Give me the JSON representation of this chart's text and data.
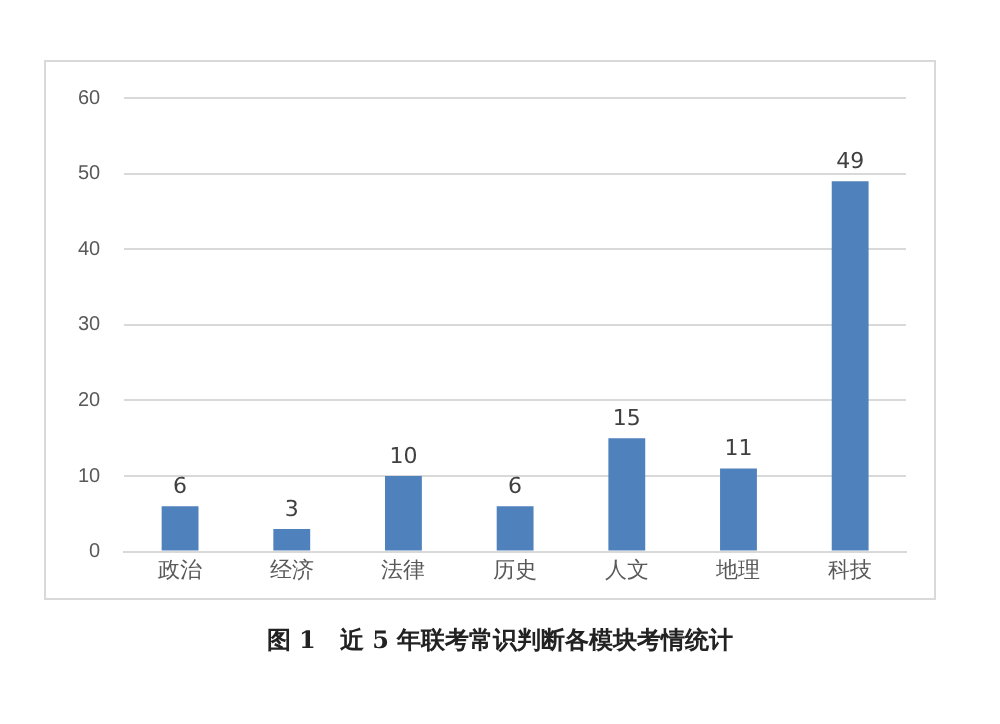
{
  "chart_data": {
    "type": "bar",
    "title": "图 1　近 5 年联考常识判断各模块考情统计",
    "categories": [
      "政治",
      "经济",
      "法律",
      "历史",
      "人文",
      "地理",
      "科技"
    ],
    "values": [
      6,
      3,
      10,
      6,
      15,
      11,
      49
    ],
    "color": "#4f81bd",
    "ylim": [
      0,
      60
    ],
    "yticks": [
      0,
      10,
      20,
      30,
      40,
      50,
      60
    ],
    "grid": "y",
    "data_labels": true
  }
}
